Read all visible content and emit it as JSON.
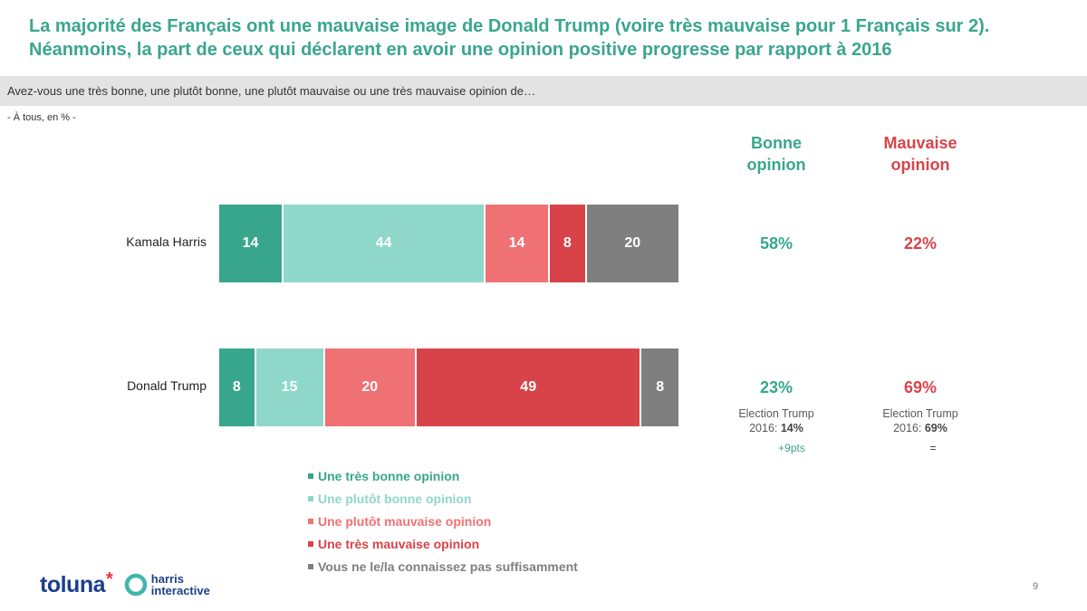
{
  "header": {
    "title_line1": "La majorité des Français ont une mauvaise image de Donald Trump (voire très mauvaise pour 1 Français sur 2).",
    "title_line2": "Néanmoins, la part de ceux qui déclarent en avoir une opinion positive progresse par rapport à 2016",
    "question": "Avez-vous une très bonne, une plutôt bonne, une plutôt mauvaise ou une très mauvaise opinion de…",
    "base": "- À tous, en % -"
  },
  "colors": {
    "title": "#3aa68e",
    "very_good": "#38a68c",
    "rather_good": "#8fd7c9",
    "rather_bad": "#f07174",
    "very_bad": "#d8434a",
    "unknown": "#7f7f7f",
    "good_text": "#38a68c",
    "bad_text": "#d8434a"
  },
  "columns": {
    "good_label_l1": "Bonne",
    "good_label_l2": "opinion",
    "bad_label_l1": "Mauvaise",
    "bad_label_l2": "opinion"
  },
  "chart_data": {
    "type": "bar",
    "orientation": "horizontal",
    "stacked": true,
    "categories": [
      "Kamala Harris",
      "Donald Trump"
    ],
    "series": [
      {
        "name": "Une très bonne opinion",
        "values": [
          14,
          8
        ]
      },
      {
        "name": "Une plutôt bonne opinion",
        "values": [
          44,
          15
        ]
      },
      {
        "name": "Une plutôt mauvaise opinion",
        "values": [
          14,
          20
        ]
      },
      {
        "name": "Une très mauvaise opinion",
        "values": [
          8,
          49
        ]
      },
      {
        "name": "Vous ne le/la connaissez pas suffisamment",
        "values": [
          20,
          8
        ]
      }
    ],
    "totals": {
      "good": [
        "58%",
        "23%"
      ],
      "bad": [
        "22%",
        "69%"
      ]
    },
    "xlim": [
      0,
      100
    ]
  },
  "comparison": {
    "good_note_l1": "Election Trump",
    "good_note_l2_prefix": "2016: ",
    "good_note_value": "14%",
    "good_delta": "+9pts",
    "bad_note_l1": "Election Trump",
    "bad_note_l2_prefix": "2016: ",
    "bad_note_value": "69%",
    "bad_delta": "="
  },
  "footer": {
    "logo_toluna": "toluna",
    "logo_harris_l1": "harris",
    "logo_harris_l2": "interactive",
    "page_number": "9"
  }
}
